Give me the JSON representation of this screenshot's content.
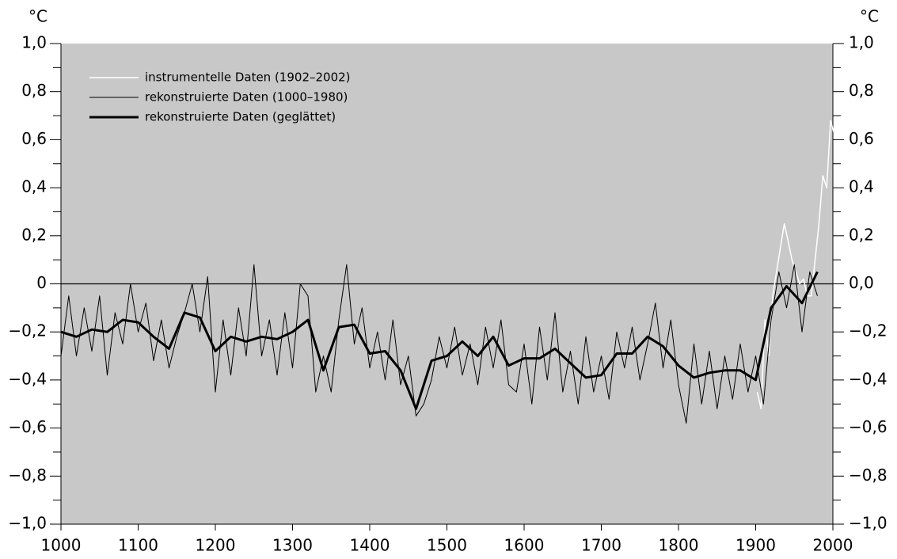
{
  "chart_data": {
    "type": "line",
    "y_unit": "°C",
    "y2_unit": "°C",
    "xlim": [
      1000,
      2000
    ],
    "xticks": [
      1000,
      1100,
      1200,
      1300,
      1400,
      1500,
      1600,
      1700,
      1800,
      1900,
      2000
    ],
    "ylim": [
      -1.0,
      1.0
    ],
    "yticks": [
      {
        "value": 1.0,
        "label": "1,0"
      },
      {
        "value": 0.8,
        "label": "0,8"
      },
      {
        "value": 0.6,
        "label": "0,6"
      },
      {
        "value": 0.4,
        "label": "0,4"
      },
      {
        "value": 0.2,
        "label": "0,2"
      },
      0,
      {
        "value": -0.2,
        "label": "−0,2"
      },
      {
        "value": -0.4,
        "label": "−0,4"
      },
      {
        "value": -0.6,
        "label": "−0,6"
      },
      {
        "value": -0.8,
        "label": "−0,8"
      },
      {
        "value": -1.0,
        "label": "−1,0"
      }
    ],
    "y2lim": [
      -1.0,
      1.0
    ],
    "y2ticks": [
      {
        "value": 1.0,
        "label": "1,0"
      },
      {
        "value": 0.8,
        "label": "0,8"
      },
      {
        "value": 0.6,
        "label": "0,6"
      },
      {
        "value": 0.4,
        "label": "0,4"
      },
      {
        "value": 0.2,
        "label": "0,2"
      },
      {
        "value": 0.0,
        "label": "0,0"
      },
      {
        "value": -0.2,
        "label": "−0,2"
      },
      {
        "value": -0.4,
        "label": "−0,4"
      },
      {
        "value": -0.6,
        "label": "−0,6"
      },
      {
        "value": -0.8,
        "label": "−0,8"
      },
      {
        "value": -1.0,
        "label": "−1,0"
      }
    ],
    "background": "#c8c8c8",
    "zero_line": true,
    "legend": "top-left",
    "series": [
      {
        "name": "instrumentelle Daten (1902–2002)",
        "color": "#ffffff",
        "line_width": 1.5,
        "x": [
          1902,
          1907,
          1912,
          1917,
          1922,
          1927,
          1932,
          1937,
          1942,
          1947,
          1952,
          1957,
          1962,
          1967,
          1972,
          1977,
          1982,
          1987,
          1992,
          1997,
          2002
        ],
        "values": [
          -0.45,
          -0.52,
          -0.15,
          -0.3,
          -0.05,
          0.05,
          0.15,
          0.25,
          0.18,
          0.1,
          0.05,
          0.0,
          0.02,
          -0.05,
          -0.05,
          0.1,
          0.25,
          0.45,
          0.4,
          0.68,
          0.62
        ]
      },
      {
        "name": "rekonstruierte Daten (1000–1980)",
        "color": "#000000",
        "line_width": 1,
        "x": [
          1000,
          1010,
          1020,
          1030,
          1040,
          1050,
          1060,
          1070,
          1080,
          1090,
          1100,
          1110,
          1120,
          1130,
          1140,
          1150,
          1160,
          1170,
          1180,
          1190,
          1200,
          1210,
          1220,
          1230,
          1240,
          1250,
          1260,
          1270,
          1280,
          1290,
          1300,
          1310,
          1320,
          1330,
          1340,
          1350,
          1360,
          1370,
          1380,
          1390,
          1400,
          1410,
          1420,
          1430,
          1440,
          1450,
          1460,
          1470,
          1480,
          1490,
          1500,
          1510,
          1520,
          1530,
          1540,
          1550,
          1560,
          1570,
          1580,
          1590,
          1600,
          1610,
          1620,
          1630,
          1640,
          1650,
          1660,
          1670,
          1680,
          1690,
          1700,
          1710,
          1720,
          1730,
          1740,
          1750,
          1760,
          1770,
          1780,
          1790,
          1800,
          1810,
          1820,
          1830,
          1840,
          1850,
          1860,
          1870,
          1880,
          1890,
          1900,
          1910,
          1920,
          1930,
          1940,
          1950,
          1960,
          1970,
          1980
        ],
        "values": [
          -0.3,
          -0.05,
          -0.3,
          -0.1,
          -0.28,
          -0.05,
          -0.38,
          -0.12,
          -0.25,
          0.0,
          -0.2,
          -0.08,
          -0.32,
          -0.15,
          -0.35,
          -0.22,
          -0.12,
          0.0,
          -0.2,
          0.03,
          -0.45,
          -0.15,
          -0.38,
          -0.1,
          -0.3,
          0.08,
          -0.3,
          -0.15,
          -0.38,
          -0.12,
          -0.35,
          0.0,
          -0.05,
          -0.45,
          -0.3,
          -0.45,
          -0.15,
          0.08,
          -0.25,
          -0.1,
          -0.35,
          -0.2,
          -0.4,
          -0.15,
          -0.42,
          -0.3,
          -0.55,
          -0.5,
          -0.4,
          -0.22,
          -0.35,
          -0.18,
          -0.38,
          -0.25,
          -0.42,
          -0.18,
          -0.35,
          -0.15,
          -0.42,
          -0.45,
          -0.25,
          -0.5,
          -0.18,
          -0.4,
          -0.12,
          -0.45,
          -0.28,
          -0.5,
          -0.22,
          -0.45,
          -0.3,
          -0.48,
          -0.2,
          -0.35,
          -0.18,
          -0.4,
          -0.25,
          -0.08,
          -0.35,
          -0.15,
          -0.42,
          -0.58,
          -0.25,
          -0.5,
          -0.28,
          -0.52,
          -0.3,
          -0.48,
          -0.25,
          -0.45,
          -0.3,
          -0.5,
          -0.15,
          0.05,
          -0.1,
          0.08,
          -0.2,
          0.05,
          -0.05
        ]
      },
      {
        "name": "rekonstruierte Daten (geglättet)",
        "color": "#000000",
        "line_width": 3,
        "x": [
          1000,
          1020,
          1040,
          1060,
          1080,
          1100,
          1120,
          1140,
          1160,
          1180,
          1200,
          1220,
          1240,
          1260,
          1280,
          1300,
          1320,
          1340,
          1360,
          1380,
          1400,
          1420,
          1440,
          1460,
          1480,
          1500,
          1520,
          1540,
          1560,
          1580,
          1600,
          1620,
          1640,
          1660,
          1680,
          1700,
          1720,
          1740,
          1760,
          1780,
          1800,
          1820,
          1840,
          1860,
          1880,
          1900,
          1920,
          1940,
          1960,
          1980
        ],
        "values": [
          -0.2,
          -0.22,
          -0.19,
          -0.2,
          -0.15,
          -0.16,
          -0.22,
          -0.27,
          -0.12,
          -0.14,
          -0.28,
          -0.22,
          -0.24,
          -0.22,
          -0.23,
          -0.2,
          -0.15,
          -0.36,
          -0.18,
          -0.17,
          -0.29,
          -0.28,
          -0.36,
          -0.52,
          -0.32,
          -0.3,
          -0.24,
          -0.3,
          -0.22,
          -0.34,
          -0.31,
          -0.31,
          -0.27,
          -0.33,
          -0.39,
          -0.38,
          -0.29,
          -0.29,
          -0.22,
          -0.26,
          -0.34,
          -0.39,
          -0.37,
          -0.36,
          -0.36,
          -0.4,
          -0.1,
          -0.01,
          -0.08,
          0.05
        ]
      }
    ]
  }
}
